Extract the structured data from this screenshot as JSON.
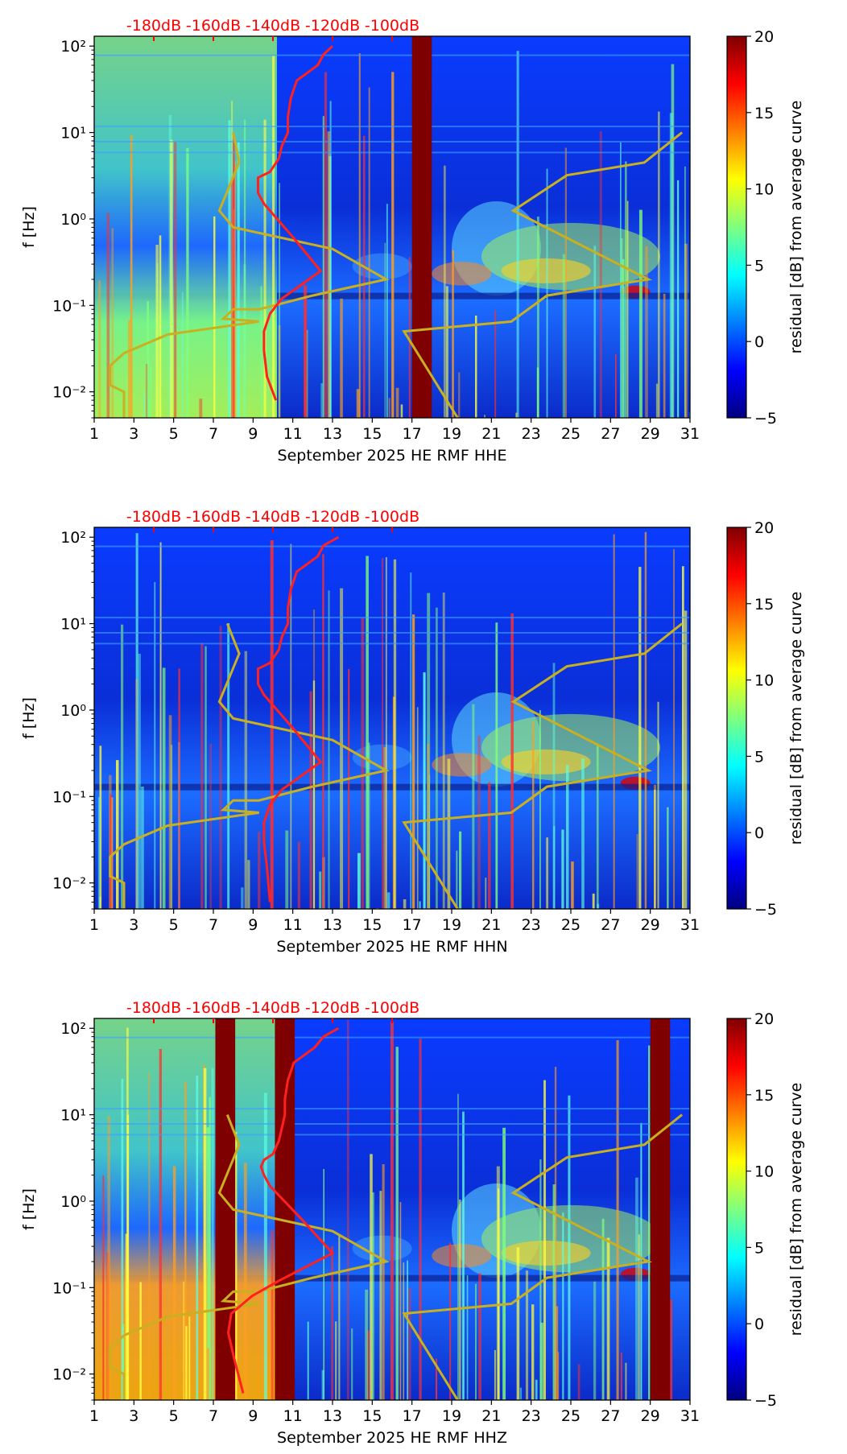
{
  "colors": {
    "noise_floor_curves": "#ff2020",
    "noise_model_curves": "#c9b020",
    "db_axis_text": "#ff0000",
    "gap_band": "#7f0000",
    "colormap": [
      "#00007f",
      "#0000ff",
      "#007fff",
      "#00ffff",
      "#7fff7f",
      "#ffff00",
      "#ff7f00",
      "#ff0000",
      "#7f0000"
    ]
  },
  "shared": {
    "ylabel": "f [Hz]",
    "y_ticks": [
      "10⁻²",
      "10⁻¹",
      "10⁰",
      "10¹",
      "10²"
    ],
    "x_ticks": [
      "1",
      "3",
      "5",
      "7",
      "9",
      "11",
      "13",
      "15",
      "17",
      "19",
      "21",
      "23",
      "25",
      "27",
      "29",
      "31"
    ],
    "db_ticks": [
      "-180dB",
      "-160dB",
      "-140dB",
      "-120dB",
      "-100dB"
    ],
    "colorbar_label": "residual [dB] from average curve",
    "colorbar_ticks": [
      "−5",
      "0",
      "5",
      "10",
      "15",
      "20"
    ]
  },
  "chart_data": [
    {
      "type": "heatmap",
      "channel": "HHE",
      "xlabel": "September 2025 HE RMF  HHE",
      "ylabel": "f [Hz]",
      "xlim": [
        1,
        31
      ],
      "ylim_hz": [
        0.005,
        130
      ],
      "y_scale": "log",
      "colorbar_range_db": [
        -5,
        20
      ],
      "data_gaps_days": [
        [
          17.0,
          18.0
        ]
      ],
      "elevated_background_days": [
        [
          1,
          10.2
        ]
      ],
      "noise_floor_curve_db_axis": {
        "db": [
          -120,
          -123,
          -125,
          -132,
          -134,
          -135,
          -135,
          -137,
          -138,
          -141,
          -145,
          -145,
          -145,
          -143,
          -133,
          -124,
          -137,
          -141,
          -143,
          -143,
          -142,
          -139
        ],
        "f_hz": [
          100,
          80,
          60,
          40,
          25,
          15,
          10,
          7,
          5,
          3.5,
          3,
          2.5,
          2,
          1.5,
          0.6,
          0.25,
          0.12,
          0.08,
          0.05,
          0.03,
          0.015,
          0.008
        ]
      },
      "noise_model_curve_days": {
        "day": [
          8.0,
          8.3,
          7.3,
          8.0,
          13.0,
          15.7,
          12.0,
          9.3,
          8.0,
          7.5,
          9.3,
          4.7,
          2.5,
          1.8,
          1.8,
          2.5,
          2.5
        ],
        "f_hz": [
          10,
          4.5,
          1.25,
          0.8,
          0.45,
          0.2,
          0.13,
          0.09,
          0.09,
          0.07,
          0.065,
          0.046,
          0.028,
          0.02,
          0.012,
          0.01,
          0.005
        ]
      },
      "noise_model_curve_right_days": {
        "day": [
          30.6,
          28.7,
          24.8,
          22.1,
          28.9,
          23.8,
          22.0,
          16.6,
          19.3
        ],
        "f_hz": [
          10,
          4.5,
          3.2,
          1.25,
          0.2,
          0.13,
          0.065,
          0.05,
          0.005
        ]
      }
    },
    {
      "type": "heatmap",
      "channel": "HHN",
      "xlabel": "September 2025 HE RMF  HHN",
      "ylabel": "f [Hz]",
      "xlim": [
        1,
        31
      ],
      "ylim_hz": [
        0.005,
        130
      ],
      "y_scale": "log",
      "colorbar_range_db": [
        -5,
        20
      ],
      "data_gaps_days": [],
      "elevated_background_days": [],
      "noise_floor_curve_db_axis": {
        "db": [
          -118,
          -123,
          -125,
          -132,
          -134,
          -135,
          -135,
          -137,
          -138,
          -141,
          -145,
          -145,
          -145,
          -143,
          -133,
          -124,
          -137,
          -141,
          -143,
          -143,
          -142,
          -141
        ],
        "f_hz": [
          100,
          80,
          60,
          40,
          25,
          15,
          10,
          7,
          5,
          3.5,
          3,
          2.5,
          2,
          1.5,
          0.6,
          0.25,
          0.12,
          0.08,
          0.05,
          0.03,
          0.015,
          0.006
        ]
      },
      "noise_model_curve_days": {
        "day": [
          7.7,
          8.3,
          7.3,
          8.0,
          13.0,
          15.7,
          12.0,
          9.3,
          8.0,
          7.5,
          9.3,
          4.7,
          2.5,
          1.8,
          1.8,
          2.5,
          2.5
        ],
        "f_hz": [
          10,
          4.5,
          1.25,
          0.8,
          0.45,
          0.2,
          0.13,
          0.09,
          0.09,
          0.07,
          0.065,
          0.046,
          0.028,
          0.02,
          0.012,
          0.01,
          0.005
        ]
      },
      "noise_model_curve_right_days": {
        "day": [
          30.6,
          28.7,
          24.8,
          22.1,
          28.9,
          23.8,
          22.0,
          16.6,
          19.3
        ],
        "f_hz": [
          10,
          4.5,
          3.2,
          1.25,
          0.2,
          0.13,
          0.065,
          0.05,
          0.005
        ]
      }
    },
    {
      "type": "heatmap",
      "channel": "HHZ",
      "xlabel": "September 2025 HE RMF  HHZ",
      "ylabel": "f [Hz]",
      "xlim": [
        1,
        31
      ],
      "ylim_hz": [
        0.005,
        130
      ],
      "y_scale": "log",
      "colorbar_range_db": [
        -5,
        20
      ],
      "data_gaps_days": [
        [
          7.1,
          8.1
        ],
        [
          10.1,
          11.1
        ],
        [
          29.0,
          30.0
        ]
      ],
      "elevated_background_days": [
        [
          1,
          10.1
        ]
      ],
      "noise_floor_curve_db_axis": {
        "db": [
          -118,
          -123,
          -126,
          -133,
          -135,
          -136,
          -136,
          -137,
          -138,
          -140,
          -143,
          -144,
          -143,
          -141,
          -130,
          -120,
          -138,
          -147,
          -154,
          -155,
          -153,
          -150
        ],
        "f_hz": [
          100,
          80,
          60,
          40,
          25,
          15,
          10,
          7,
          5,
          3.5,
          3,
          2.5,
          2,
          1.5,
          0.6,
          0.25,
          0.12,
          0.08,
          0.05,
          0.03,
          0.015,
          0.006
        ]
      },
      "noise_model_curve_days": {
        "day": [
          7.7,
          8.3,
          7.3,
          8.0,
          13.0,
          15.7,
          12.0,
          9.3,
          8.0,
          7.5,
          9.3,
          4.7,
          2.5,
          1.8,
          1.8,
          2.5,
          2.5
        ],
        "f_hz": [
          10,
          4.5,
          1.25,
          0.8,
          0.45,
          0.2,
          0.13,
          0.09,
          0.09,
          0.07,
          0.065,
          0.046,
          0.028,
          0.02,
          0.012,
          0.01,
          0.005
        ]
      },
      "noise_model_curve_right_days": {
        "day": [
          30.6,
          28.7,
          24.8,
          22.1,
          28.9,
          23.8,
          22.0,
          16.6,
          19.3
        ],
        "f_hz": [
          10,
          4.5,
          3.2,
          1.25,
          0.2,
          0.13,
          0.065,
          0.05,
          0.005
        ]
      }
    }
  ]
}
